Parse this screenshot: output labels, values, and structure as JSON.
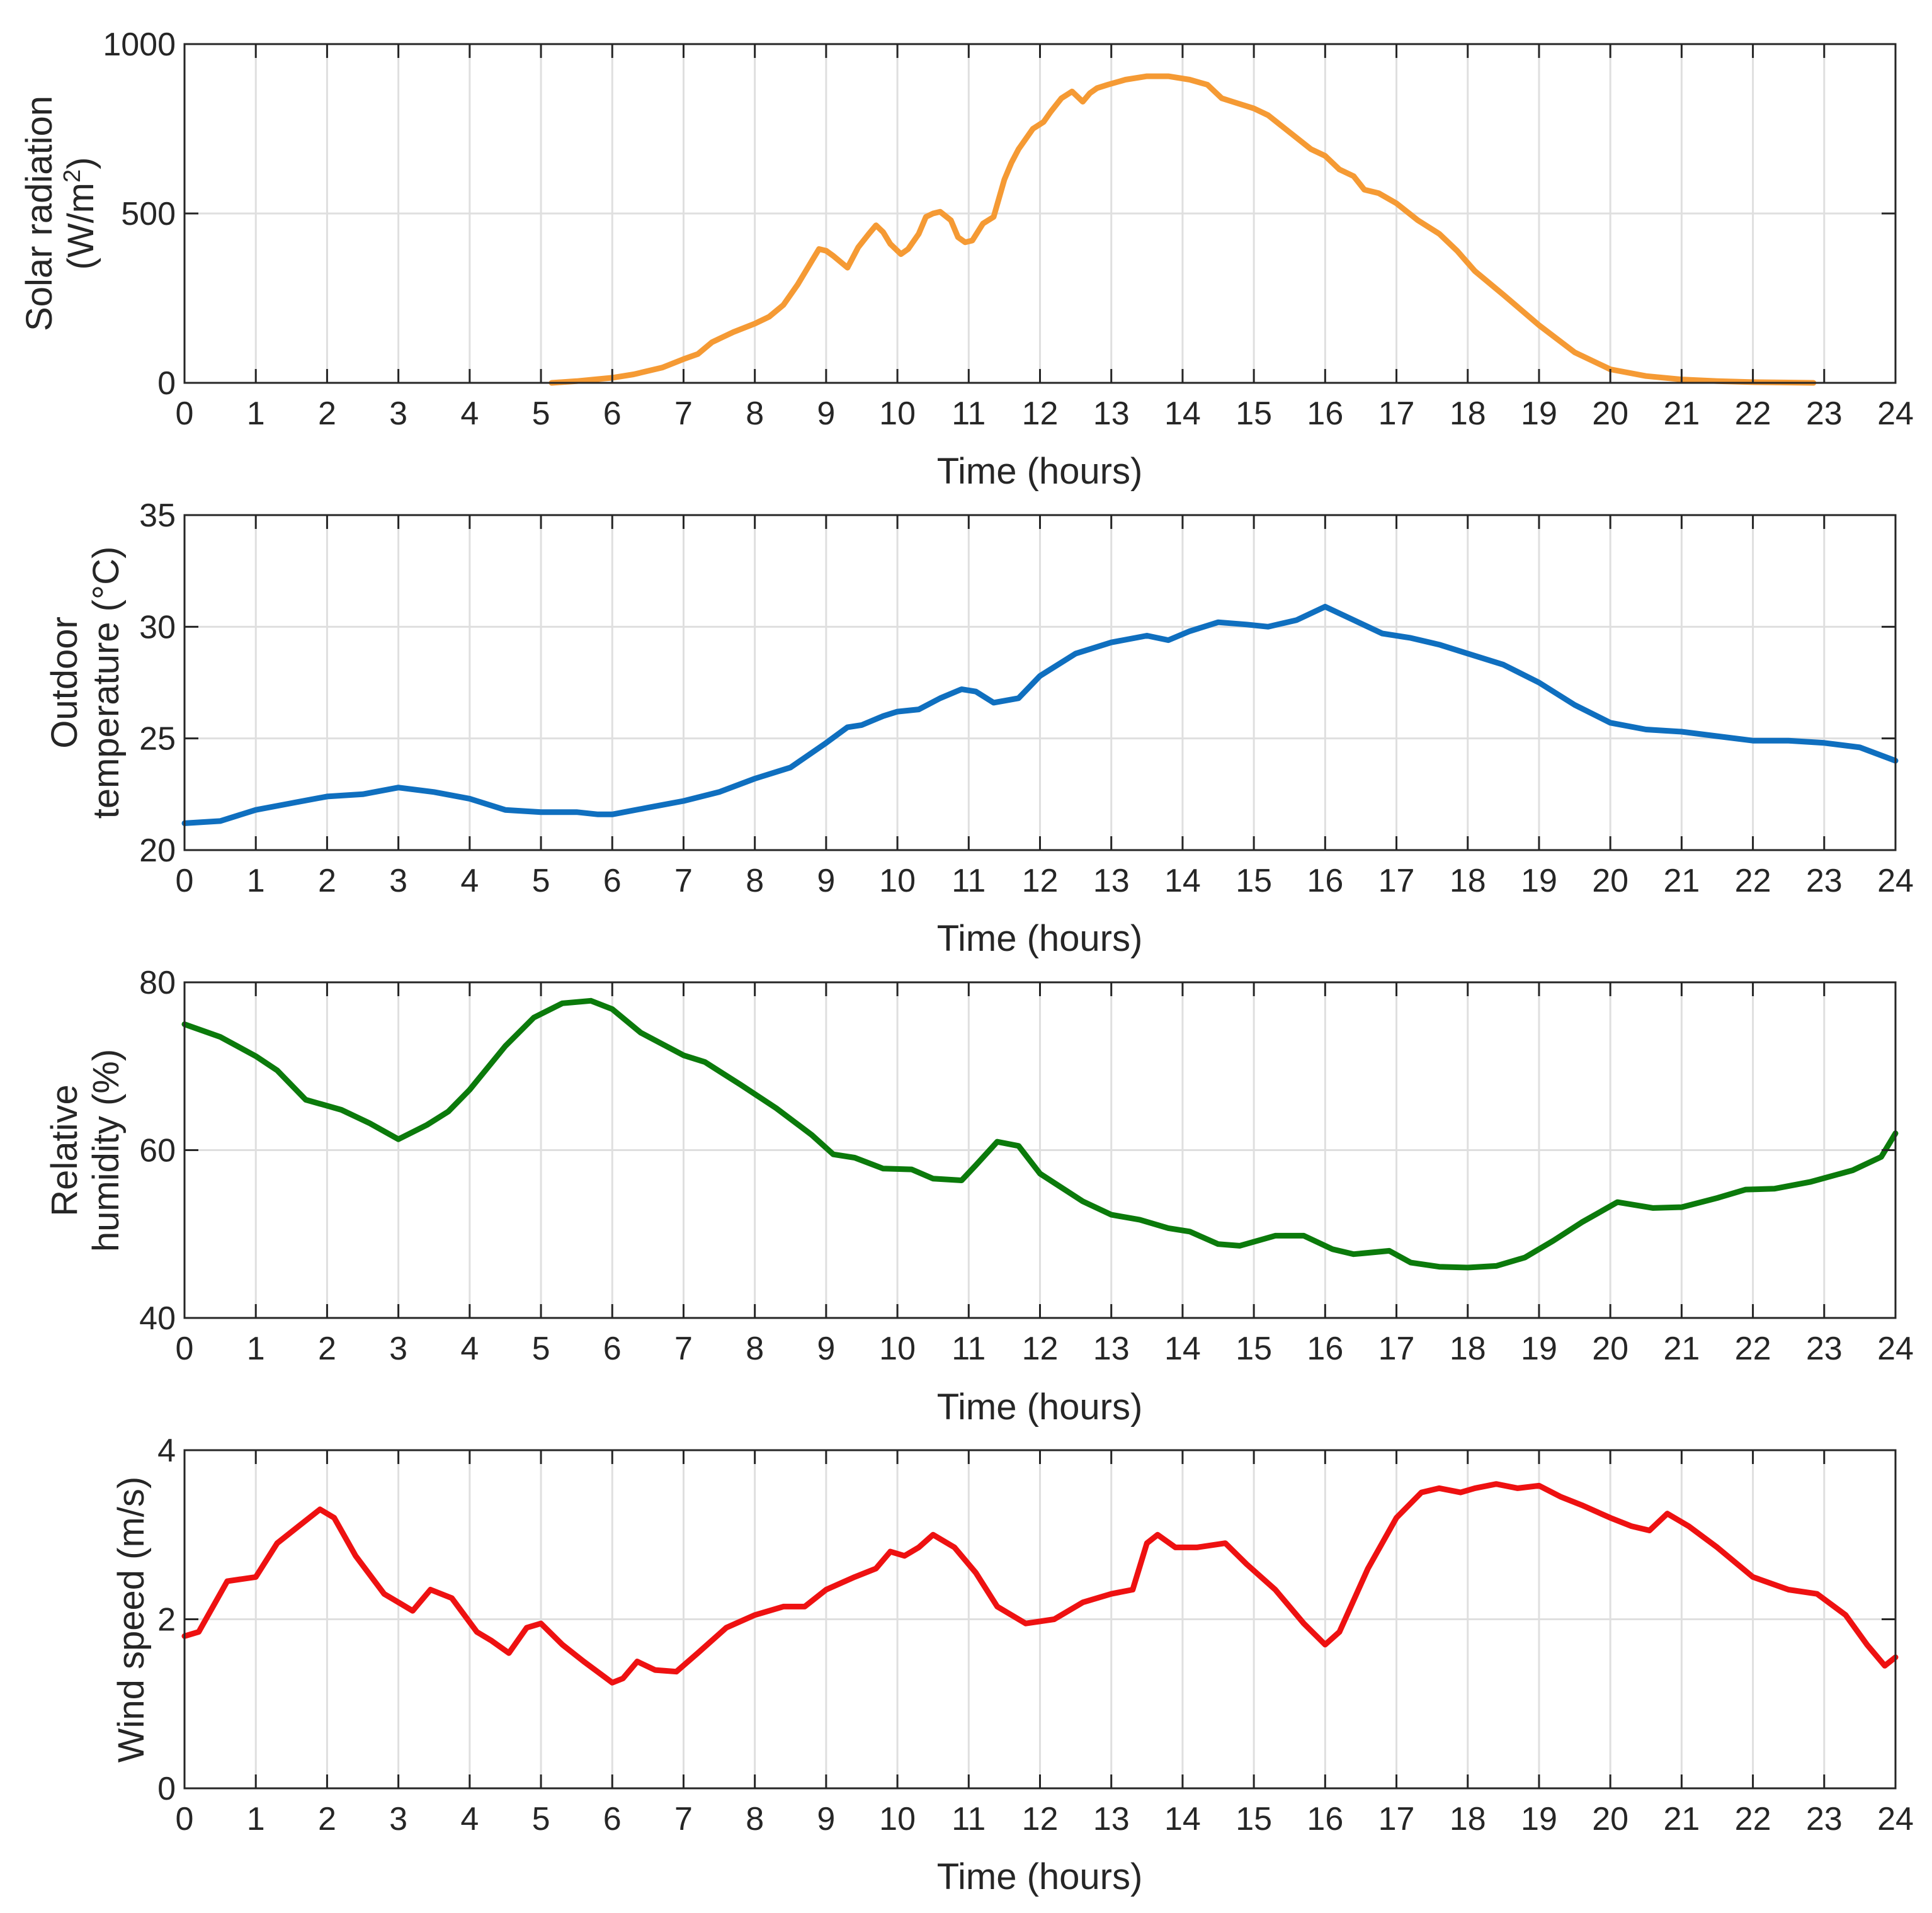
{
  "chart_data": [
    {
      "type": "line",
      "id": "solar",
      "ylabel_line1": "Solar radiation",
      "ylabel_line2": "(W/m",
      "ylabel_sup": "2",
      "ylabel_close": ")",
      "xlabel": "Time (hours)",
      "xlim": [
        0,
        24
      ],
      "ylim": [
        0,
        1000
      ],
      "xticks": [
        "0",
        "1",
        "2",
        "3",
        "4",
        "5",
        "6",
        "7",
        "8",
        "9",
        "10",
        "11",
        "12",
        "13",
        "14",
        "15",
        "16",
        "17",
        "18",
        "19",
        "20",
        "21",
        "22",
        "23",
        "24"
      ],
      "yticks": [
        0,
        500,
        1000
      ],
      "ytick_labels": [
        "0",
        "500",
        "1000"
      ],
      "color": "#f59a34",
      "grid": true,
      "series": [
        {
          "name": "Solar radiation",
          "x": [
            5.15,
            5.5,
            6.0,
            6.3,
            6.7,
            7.0,
            7.2,
            7.4,
            7.7,
            8.0,
            8.2,
            8.4,
            8.6,
            8.8,
            8.9,
            9.0,
            9.1,
            9.3,
            9.45,
            9.6,
            9.7,
            9.8,
            9.9,
            10.05,
            10.15,
            10.3,
            10.4,
            10.5,
            10.6,
            10.75,
            10.85,
            10.95,
            11.05,
            11.2,
            11.35,
            11.5,
            11.6,
            11.7,
            11.9,
            12.05,
            12.15,
            12.3,
            12.45,
            12.6,
            12.7,
            12.8,
            12.95,
            13.2,
            13.5,
            13.8,
            14.1,
            14.35,
            14.55,
            14.7,
            15.0,
            15.2,
            15.5,
            15.8,
            16.0,
            16.2,
            16.4,
            16.55,
            16.75,
            17.0,
            17.3,
            17.6,
            17.85,
            18.1,
            18.5,
            19.0,
            19.5,
            20.0,
            20.5,
            21.0,
            21.5,
            22.0,
            22.5,
            22.85
          ],
          "y": [
            0,
            5,
            15,
            25,
            45,
            70,
            85,
            120,
            150,
            175,
            195,
            230,
            290,
            360,
            395,
            390,
            375,
            340,
            400,
            440,
            465,
            445,
            410,
            380,
            395,
            440,
            490,
            500,
            505,
            480,
            430,
            415,
            420,
            470,
            490,
            600,
            650,
            690,
            750,
            770,
            800,
            840,
            860,
            830,
            855,
            870,
            880,
            895,
            905,
            905,
            895,
            880,
            840,
            830,
            810,
            790,
            740,
            690,
            670,
            630,
            610,
            570,
            560,
            530,
            480,
            440,
            390,
            330,
            260,
            170,
            90,
            40,
            20,
            10,
            5,
            2,
            1,
            0
          ]
        }
      ]
    },
    {
      "type": "line",
      "id": "temperature",
      "ylabel_line1": "Outdoor",
      "ylabel_line2": "temperature (°C)",
      "xlabel": "Time (hours)",
      "xlim": [
        0,
        24
      ],
      "ylim": [
        20,
        35
      ],
      "xticks": [
        "0",
        "1",
        "2",
        "3",
        "4",
        "5",
        "6",
        "7",
        "8",
        "9",
        "10",
        "11",
        "12",
        "13",
        "14",
        "15",
        "16",
        "17",
        "18",
        "19",
        "20",
        "21",
        "22",
        "23",
        "24"
      ],
      "yticks": [
        20,
        25,
        30,
        35
      ],
      "ytick_labels": [
        "20",
        "25",
        "30",
        "35"
      ],
      "color": "#0f6fbf",
      "grid": true,
      "series": [
        {
          "name": "Outdoor temperature",
          "x": [
            0,
            0.5,
            1.0,
            1.5,
            2.0,
            2.5,
            3.0,
            3.5,
            4.0,
            4.5,
            5.0,
            5.5,
            5.8,
            6.0,
            6.5,
            7.0,
            7.5,
            8.0,
            8.5,
            9.0,
            9.3,
            9.5,
            9.8,
            10.0,
            10.3,
            10.6,
            10.9,
            11.1,
            11.35,
            11.7,
            12.0,
            12.5,
            13.0,
            13.5,
            13.8,
            14.1,
            14.5,
            14.9,
            15.2,
            15.6,
            16.0,
            16.4,
            16.8,
            17.2,
            17.6,
            18.0,
            18.5,
            19.0,
            19.5,
            20.0,
            20.5,
            21.0,
            21.5,
            22.0,
            22.5,
            23.0,
            23.5,
            24.0
          ],
          "y": [
            21.2,
            21.3,
            21.8,
            22.1,
            22.4,
            22.5,
            22.8,
            22.6,
            22.3,
            21.8,
            21.7,
            21.7,
            21.6,
            21.6,
            21.9,
            22.2,
            22.6,
            23.2,
            23.7,
            24.8,
            25.5,
            25.6,
            26.0,
            26.2,
            26.3,
            26.8,
            27.2,
            27.1,
            26.6,
            26.8,
            27.8,
            28.8,
            29.3,
            29.6,
            29.4,
            29.8,
            30.2,
            30.1,
            30.0,
            30.3,
            30.9,
            30.3,
            29.7,
            29.5,
            29.2,
            28.8,
            28.3,
            27.5,
            26.5,
            25.7,
            25.4,
            25.3,
            25.1,
            24.9,
            24.9,
            24.8,
            24.6,
            24.0
          ]
        }
      ]
    },
    {
      "type": "line",
      "id": "humidity",
      "ylabel_line1": "Relative",
      "ylabel_line2": "humidity (%)",
      "xlabel": "Time (hours)",
      "xlim": [
        0,
        24
      ],
      "ylim": [
        40,
        80
      ],
      "xticks": [
        "0",
        "1",
        "2",
        "3",
        "4",
        "5",
        "6",
        "7",
        "8",
        "9",
        "10",
        "11",
        "12",
        "13",
        "14",
        "15",
        "16",
        "17",
        "18",
        "19",
        "20",
        "21",
        "22",
        "23",
        "24"
      ],
      "yticks": [
        40,
        60,
        80
      ],
      "ytick_labels": [
        "40",
        "60",
        "80"
      ],
      "color": "#0b7a0b",
      "grid": true,
      "series": [
        {
          "name": "Relative humidity",
          "x": [
            0,
            0.5,
            1.0,
            1.3,
            1.7,
            2.2,
            2.6,
            3.0,
            3.4,
            3.7,
            4.0,
            4.5,
            4.9,
            5.3,
            5.7,
            6.0,
            6.4,
            7.0,
            7.3,
            7.8,
            8.3,
            8.8,
            9.1,
            9.4,
            9.8,
            10.2,
            10.5,
            10.9,
            11.1,
            11.4,
            11.7,
            12.0,
            12.6,
            13.0,
            13.4,
            13.8,
            14.1,
            14.5,
            14.8,
            15.3,
            15.7,
            16.1,
            16.4,
            16.9,
            17.2,
            17.6,
            18.0,
            18.4,
            18.8,
            19.2,
            19.6,
            20.1,
            20.6,
            21.0,
            21.5,
            21.9,
            22.3,
            22.8,
            23.4,
            23.8,
            24.0
          ],
          "y": [
            75,
            73.5,
            71.2,
            69.5,
            66,
            64.8,
            63.2,
            61.3,
            63,
            64.6,
            67.2,
            72.4,
            75.8,
            77.5,
            77.8,
            76.8,
            74,
            71.3,
            70.5,
            67.8,
            65,
            61.8,
            59.5,
            59.1,
            57.8,
            57.7,
            56.6,
            56.4,
            58.2,
            61,
            60.5,
            57.2,
            53.9,
            52.3,
            51.7,
            50.7,
            50.3,
            48.8,
            48.6,
            49.8,
            49.8,
            48.2,
            47.6,
            48,
            46.6,
            46.1,
            46,
            46.2,
            47.2,
            49.2,
            51.4,
            53.8,
            53.1,
            53.2,
            54.3,
            55.3,
            55.4,
            56.2,
            57.6,
            59.2,
            62
          ]
        }
      ]
    },
    {
      "type": "line",
      "id": "wind",
      "ylabel_line1": "Wind speed (m/s)",
      "xlabel": "Time (hours)",
      "xlim": [
        0,
        24
      ],
      "ylim": [
        0,
        4
      ],
      "xticks": [
        "0",
        "1",
        "2",
        "3",
        "4",
        "5",
        "6",
        "7",
        "8",
        "9",
        "10",
        "11",
        "12",
        "13",
        "14",
        "15",
        "16",
        "17",
        "18",
        "19",
        "20",
        "21",
        "22",
        "23",
        "24"
      ],
      "yticks": [
        0,
        2,
        4
      ],
      "ytick_labels": [
        "0",
        "2",
        "4"
      ],
      "color": "#ee1111",
      "grid": true,
      "series": [
        {
          "name": "Wind speed",
          "x": [
            0,
            0.2,
            0.6,
            1.0,
            1.3,
            1.6,
            1.9,
            2.1,
            2.4,
            2.8,
            3.2,
            3.45,
            3.75,
            4.1,
            4.3,
            4.55,
            4.8,
            5.0,
            5.3,
            5.6,
            6.0,
            6.15,
            6.35,
            6.6,
            6.9,
            7.2,
            7.6,
            8.0,
            8.4,
            8.7,
            9.0,
            9.4,
            9.7,
            9.9,
            10.1,
            10.3,
            10.5,
            10.8,
            11.1,
            11.4,
            11.8,
            12.2,
            12.6,
            13.0,
            13.3,
            13.5,
            13.65,
            13.9,
            14.2,
            14.6,
            14.9,
            15.3,
            15.7,
            16.0,
            16.2,
            16.6,
            17.0,
            17.35,
            17.6,
            17.9,
            18.1,
            18.4,
            18.7,
            19.0,
            19.3,
            19.6,
            20.0,
            20.3,
            20.55,
            20.8,
            21.1,
            21.5,
            22.0,
            22.5,
            22.9,
            23.3,
            23.6,
            23.85,
            24.0
          ],
          "y": [
            1.8,
            1.85,
            2.45,
            2.5,
            2.9,
            3.1,
            3.3,
            3.2,
            2.75,
            2.3,
            2.1,
            2.35,
            2.25,
            1.85,
            1.75,
            1.6,
            1.9,
            1.95,
            1.7,
            1.5,
            1.25,
            1.3,
            1.5,
            1.4,
            1.38,
            1.6,
            1.9,
            2.05,
            2.15,
            2.15,
            2.35,
            2.5,
            2.6,
            2.8,
            2.75,
            2.85,
            3.0,
            2.85,
            2.55,
            2.15,
            1.95,
            2.0,
            2.2,
            2.3,
            2.35,
            2.9,
            3.0,
            2.85,
            2.85,
            2.9,
            2.65,
            2.35,
            1.95,
            1.7,
            1.85,
            2.6,
            3.2,
            3.5,
            3.55,
            3.5,
            3.55,
            3.6,
            3.55,
            3.58,
            3.45,
            3.35,
            3.2,
            3.1,
            3.05,
            3.25,
            3.1,
            2.85,
            2.5,
            2.35,
            2.3,
            2.05,
            1.7,
            1.45,
            1.55
          ]
        }
      ]
    }
  ]
}
